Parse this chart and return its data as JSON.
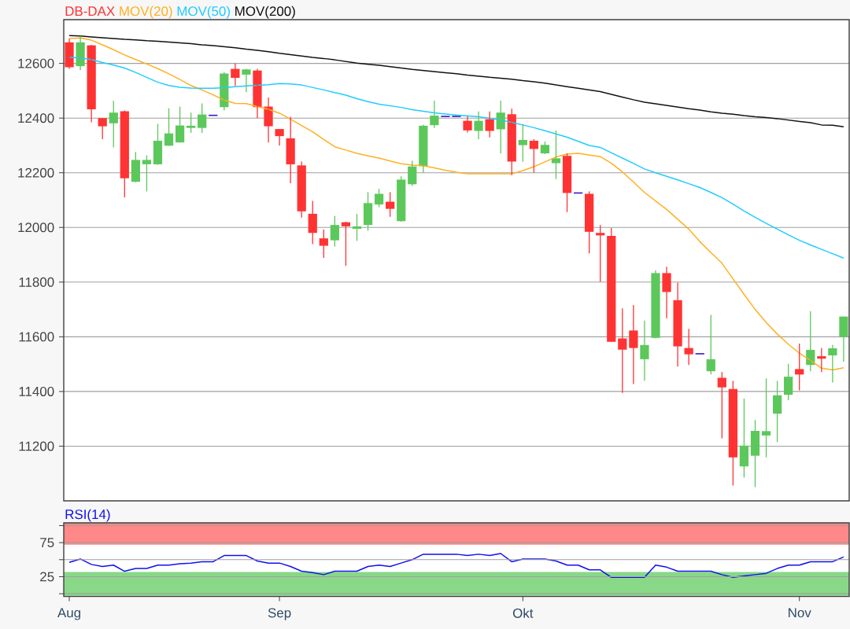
{
  "chart_data": [
    {
      "type": "candlestick",
      "categories": [
        null,
        null,
        null,
        null,
        null,
        null,
        null,
        null,
        null,
        null,
        null,
        null,
        null,
        null,
        null,
        null,
        null,
        null,
        null,
        null,
        null,
        null,
        null,
        null,
        null,
        null,
        null,
        null,
        null,
        null,
        null,
        null,
        null,
        null,
        null,
        null,
        null,
        null,
        null,
        null,
        null,
        null,
        null,
        null,
        null,
        null,
        null,
        null,
        null,
        null,
        null,
        null,
        null,
        null,
        null,
        null,
        null,
        null,
        null,
        null,
        null,
        null,
        null,
        null,
        null,
        null,
        null,
        null,
        null,
        null,
        null
      ],
      "series": [
        {
          "name": "DB-DAX",
          "color": "#ff3333",
          "colors": [
            "#ff3333",
            "#5cc85c",
            "#ff3333",
            "#ff3333",
            "#5cc85c",
            "#ff3333",
            "#5cc85c",
            "#5cc85c",
            "#5cc85c",
            "#5cc85c",
            "#5cc85c",
            "#5cc85c",
            "#5cc85c",
            "#3c14c8",
            "#5cc85c",
            "#ff3333",
            "#5cc85c",
            "#ff3333",
            "#ff3333",
            "#ff3333",
            "#ff3333",
            "#ff3333",
            "#ff3333",
            "#ff3333",
            "#5cc85c",
            "#ff3333",
            "#5cc85c",
            "#5cc85c",
            "#5cc85c",
            "#ff3333",
            "#5cc85c",
            "#5cc85c",
            "#5cc85c",
            "#5cc85c",
            "#3c14c8",
            "#3c14c8",
            "#ff3333",
            "#5cc85c",
            "#ff3333",
            "#5cc85c",
            "#ff3333",
            "#5cc85c",
            "#ff3333",
            "#5cc85c",
            "#5cc85c",
            "#ff3333",
            "#3c14c8",
            "#ff3333",
            "#ff3333",
            "#ff3333",
            "#ff3333",
            "#ff3333",
            "#5cc85c",
            "#5cc85c",
            "#ff3333",
            "#ff3333",
            "#ff3333",
            "#3c14c8",
            "#5cc85c",
            "#ff3333",
            "#ff3333",
            "#5cc85c",
            "#5cc85c",
            "#5cc85c",
            "#5cc85c",
            "#5cc85c",
            "#ff3333",
            "#5cc85c",
            "#ff3333",
            "#5cc85c",
            "#5cc85c"
          ],
          "ohlc": [
            [
              12677,
              12690,
              12580,
              12586
            ],
            [
              12590,
              12700,
              12575,
              12677
            ],
            [
              12666,
              12668,
              12385,
              12432
            ],
            [
              12400,
              12400,
              12323,
              12370
            ],
            [
              12381,
              12463,
              12293,
              12420
            ],
            [
              12425,
              12428,
              12110,
              12180
            ],
            [
              12167,
              12276,
              12165,
              12247
            ],
            [
              12231,
              12264,
              12132,
              12247
            ],
            [
              12231,
              12379,
              12229,
              12317
            ],
            [
              12299,
              12436,
              12298,
              12344
            ],
            [
              12311,
              12442,
              12310,
              12373
            ],
            [
              12364,
              12420,
              12346,
              12372
            ],
            [
              12364,
              12454,
              12346,
              12413
            ],
            [
              12410,
              12410,
              12410,
              12410
            ],
            [
              12440,
              12568,
              12428,
              12563
            ],
            [
              12580,
              12600,
              12518,
              12547
            ],
            [
              12559,
              12580,
              12495,
              12578
            ],
            [
              12574,
              12580,
              12400,
              12440
            ],
            [
              12442,
              12475,
              12311,
              12370
            ],
            [
              12360,
              12360,
              12299,
              12334
            ],
            [
              12326,
              12405,
              12162,
              12231
            ],
            [
              12227,
              12241,
              12036,
              12059
            ],
            [
              12050,
              12097,
              11939,
              11980
            ],
            [
              11960,
              11992,
              11889,
              11933
            ],
            [
              11953,
              12042,
              11930,
              12009
            ],
            [
              12019,
              12021,
              11860,
              12004
            ],
            [
              11995,
              12050,
              11951,
              12004
            ],
            [
              12009,
              12129,
              11988,
              12089
            ],
            [
              12084,
              12141,
              12074,
              12123
            ],
            [
              12094,
              12129,
              12039,
              12068
            ],
            [
              12023,
              12187,
              12021,
              12175
            ],
            [
              12158,
              12244,
              12152,
              12223
            ],
            [
              12224,
              12376,
              12199,
              12372
            ],
            [
              12374,
              12464,
              12364,
              12409
            ],
            [
              12406,
              12406,
              12406,
              12406
            ],
            [
              12406,
              12406,
              12406,
              12406
            ],
            [
              12390,
              12406,
              12347,
              12355
            ],
            [
              12353,
              12424,
              12323,
              12390
            ],
            [
              12396,
              12424,
              12329,
              12353
            ],
            [
              12359,
              12464,
              12271,
              12420
            ],
            [
              12414,
              12434,
              12191,
              12241
            ],
            [
              12301,
              12378,
              12241,
              12320
            ],
            [
              12317,
              12323,
              12200,
              12287
            ],
            [
              12271,
              12314,
              12268,
              12302
            ],
            [
              12235,
              12355,
              12177,
              12253
            ],
            [
              12262,
              12271,
              12056,
              12126
            ],
            [
              12126,
              12126,
              12126,
              12126
            ],
            [
              12123,
              12132,
              11905,
              11984
            ],
            [
              11980,
              12009,
              11802,
              11971
            ],
            [
              11969,
              11998,
              11582,
              11582
            ],
            [
              11594,
              11704,
              11395,
              11553
            ],
            [
              11623,
              11716,
              11427,
              11559
            ],
            [
              11518,
              11659,
              11439,
              11570
            ],
            [
              11596,
              11843,
              11594,
              11833
            ],
            [
              11833,
              11856,
              11668,
              11764
            ],
            [
              11734,
              11798,
              11491,
              11565
            ],
            [
              11559,
              11629,
              11497,
              11536
            ],
            [
              11538,
              11538,
              11538,
              11538
            ],
            [
              11474,
              11680,
              11462,
              11518
            ],
            [
              11450,
              11471,
              11229,
              11415
            ],
            [
              11409,
              11439,
              11056,
              11159
            ],
            [
              11126,
              11374,
              11085,
              11202
            ],
            [
              11165,
              11296,
              11050,
              11256
            ],
            [
              11239,
              11448,
              11159,
              11255
            ],
            [
              11319,
              11439,
              11215,
              11386
            ],
            [
              11388,
              11501,
              11368,
              11454
            ],
            [
              11482,
              11575,
              11404,
              11462
            ],
            [
              11497,
              11694,
              11474,
              11552
            ],
            [
              11529,
              11559,
              11471,
              11520
            ],
            [
              11532,
              11570,
              11433,
              11558
            ],
            [
              11600,
              11674,
              11509,
              11674
            ]
          ]
        },
        {
          "name": "MOV(20)",
          "type": "line",
          "color": "#ffb020",
          "values": [
            12691,
            12693,
            12685,
            12668,
            12650,
            12631,
            12614,
            12598,
            12581,
            12562,
            12541,
            12519,
            12503,
            12485,
            12466,
            12454,
            12453,
            12442,
            12432,
            12418,
            12396,
            12373,
            12350,
            12322,
            12295,
            12283,
            12271,
            12262,
            12254,
            12243,
            12233,
            12228,
            12226,
            12218,
            12209,
            12202,
            12196,
            12196,
            12196,
            12196,
            12196,
            12208,
            12222,
            12240,
            12258,
            12268,
            12271,
            12265,
            12259,
            12235,
            12203,
            12166,
            12128,
            12097,
            12066,
            12030,
            11994,
            11948,
            11908,
            11869,
            11812,
            11755,
            11700,
            11652,
            11610,
            11573,
            11540,
            11514,
            11485,
            11479,
            11487
          ]
        },
        {
          "name": "MOV(50)",
          "type": "line",
          "color": "#20ccff",
          "values": [
            12623,
            12620,
            12614,
            12603,
            12594,
            12583,
            12567,
            12549,
            12531,
            12519,
            12513,
            12510,
            12509,
            12509,
            12511,
            12515,
            12518,
            12520,
            12522,
            12526,
            12525,
            12521,
            12512,
            12503,
            12493,
            12484,
            12471,
            12460,
            12451,
            12445,
            12439,
            12431,
            12425,
            12419,
            12415,
            12411,
            12408,
            12405,
            12399,
            12393,
            12384,
            12375,
            12365,
            12354,
            12342,
            12330,
            12315,
            12300,
            12293,
            12273,
            12254,
            12234,
            12214,
            12200,
            12187,
            12174,
            12160,
            12146,
            12128,
            12109,
            12085,
            12060,
            12037,
            12015,
            11994,
            11973,
            11953,
            11936,
            11920,
            11904,
            11888
          ]
        },
        {
          "name": "MOV(200)",
          "type": "line",
          "color": "#111111",
          "values": [
            12702,
            12700,
            12697,
            12694,
            12691,
            12688,
            12686,
            12683,
            12681,
            12678,
            12675,
            12672,
            12668,
            12665,
            12661,
            12657,
            12652,
            12648,
            12643,
            12637,
            12632,
            12627,
            12622,
            12618,
            12613,
            12607,
            12601,
            12597,
            12593,
            12588,
            12583,
            12578,
            12574,
            12570,
            12566,
            12562,
            12557,
            12553,
            12549,
            12546,
            12542,
            12537,
            12533,
            12528,
            12521,
            12515,
            12509,
            12503,
            12497,
            12487,
            12477,
            12467,
            12458,
            12452,
            12446,
            12440,
            12434,
            12429,
            12423,
            12418,
            12414,
            12409,
            12405,
            12402,
            12398,
            12393,
            12388,
            12383,
            12375,
            12374,
            12368
          ]
        }
      ],
      "ylim": [
        11000,
        12760
      ],
      "yticks": [
        11200,
        11400,
        11600,
        11800,
        12000,
        12200,
        12400,
        12600
      ],
      "grid": "y",
      "legend": "top left"
    },
    {
      "type": "line",
      "categories": [
        "Aug",
        null,
        null,
        null,
        null,
        null,
        null,
        null,
        null,
        null,
        null,
        null,
        null,
        null,
        null,
        null,
        null,
        null,
        null,
        "Sep",
        null,
        null,
        null,
        null,
        null,
        null,
        null,
        null,
        null,
        null,
        null,
        null,
        null,
        null,
        null,
        null,
        null,
        null,
        null,
        null,
        null,
        "Okt",
        null,
        null,
        null,
        null,
        null,
        null,
        null,
        null,
        null,
        null,
        null,
        null,
        null,
        null,
        null,
        null,
        null,
        null,
        null,
        null,
        null,
        null,
        null,
        null,
        "Nov",
        null,
        null,
        null,
        null
      ],
      "series": [
        {
          "name": "RSI(14)",
          "color": "#1010ee",
          "values": [
            46,
            51,
            43,
            40,
            42,
            33,
            37,
            37,
            42,
            42,
            44,
            45,
            47,
            47,
            56,
            56,
            56,
            48,
            45,
            45,
            40,
            33,
            31,
            28,
            33,
            33,
            33,
            40,
            42,
            40,
            45,
            50,
            58,
            58,
            58,
            58,
            56,
            58,
            56,
            59,
            47,
            51,
            51,
            51,
            48,
            42,
            42,
            35,
            35,
            24,
            24,
            24,
            24,
            42,
            39,
            33,
            33,
            33,
            33,
            28,
            24,
            26,
            28,
            30,
            37,
            42,
            42,
            47,
            47,
            47,
            54
          ]
        }
      ],
      "ylim": [
        -4,
        104
      ],
      "yticks": [
        {
          "value": 0,
          "label": null
        },
        25,
        {
          "value": 50,
          "label": null
        },
        75,
        {
          "value": 100,
          "label": null
        }
      ],
      "bands": [
        {
          "axis": "y",
          "from": 72,
          "to": 104,
          "color": "#ff8888"
        },
        {
          "axis": "y",
          "from": -4,
          "to": 32,
          "color": "#88d888"
        }
      ],
      "grid": "y",
      "legend": "top left"
    }
  ]
}
